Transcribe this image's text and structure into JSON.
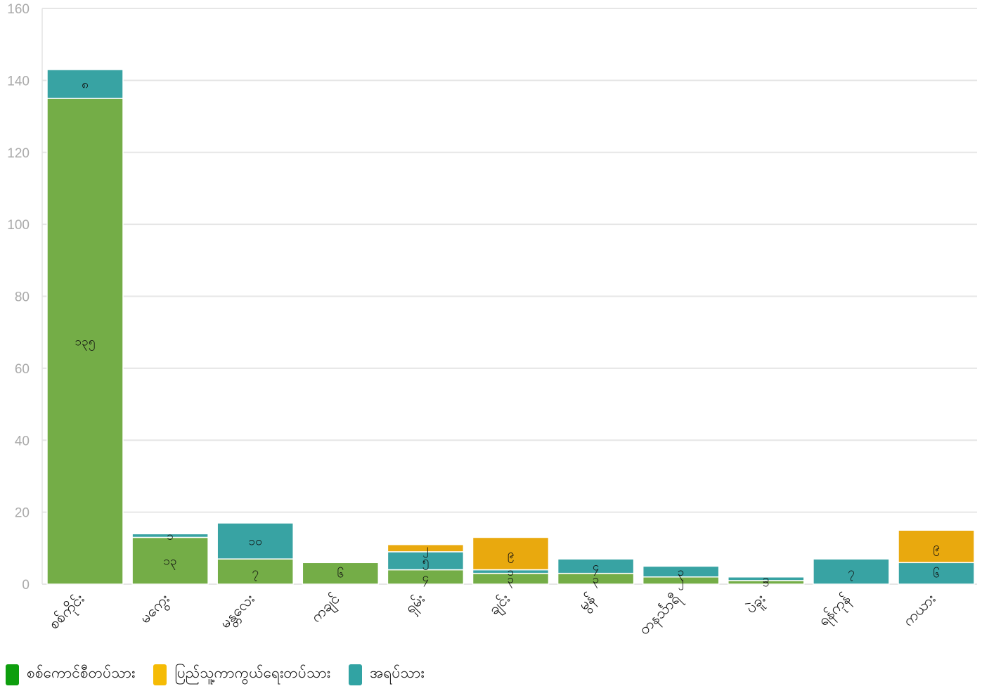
{
  "chart_data": {
    "type": "bar",
    "stacked": true,
    "categories": [
      "စစ်ကိုင်း",
      "မကွေး",
      "မန္တလေး",
      "ကချင်",
      "ရှမ်း",
      "ချင်း",
      "မွန်",
      "တနင်္သာရီ",
      "ပဲခူး",
      "ရန်ကုန်",
      "ကယား"
    ],
    "series": [
      {
        "name": "စစ်ကောင်စီတပ်သား",
        "color": "#74ad47",
        "values": [
          135,
          13,
          7,
          6,
          4,
          3,
          3,
          2,
          1,
          0,
          0
        ],
        "labels": [
          "၁၃၅",
          "၁၃",
          "၇",
          "၆",
          "၄",
          "၃",
          "၃",
          "၂",
          "၁",
          "",
          ""
        ]
      },
      {
        "name": "အရပ်သား",
        "color": "#38a3a3",
        "values": [
          8,
          1,
          10,
          0,
          5,
          1,
          4,
          3,
          1,
          7,
          6
        ],
        "labels": [
          "၈",
          "၁",
          "၁၀",
          "",
          "၅",
          "၁",
          "၄",
          "၃",
          "၁",
          "၇",
          "၆"
        ]
      },
      {
        "name": "ပြည်သူ့ကာကွယ်ရေးတပ်သား",
        "color": "#e9a90e",
        "values": [
          0,
          0,
          0,
          0,
          2,
          9,
          0,
          0,
          0,
          0,
          9
        ],
        "labels": [
          "",
          "",
          "",
          "",
          "၂",
          "၉",
          "",
          "",
          "",
          "",
          "၉"
        ]
      }
    ],
    "ylim": [
      0,
      160
    ],
    "yticks": [
      "0",
      "20",
      "40",
      "60",
      "80",
      "100",
      "120",
      "140",
      "160"
    ],
    "grid": true,
    "legend_position": "bottom-left"
  },
  "legend": {
    "items": [
      {
        "label": "စစ်ကောင်စီတပ်သား",
        "color": "#0e9e0e"
      },
      {
        "label": "ပြည်သူ့ကာကွယ်ရေးတပ်သား",
        "color": "#f5bb05"
      },
      {
        "label": "အရပ်သား",
        "color": "#31a3a3"
      }
    ]
  }
}
